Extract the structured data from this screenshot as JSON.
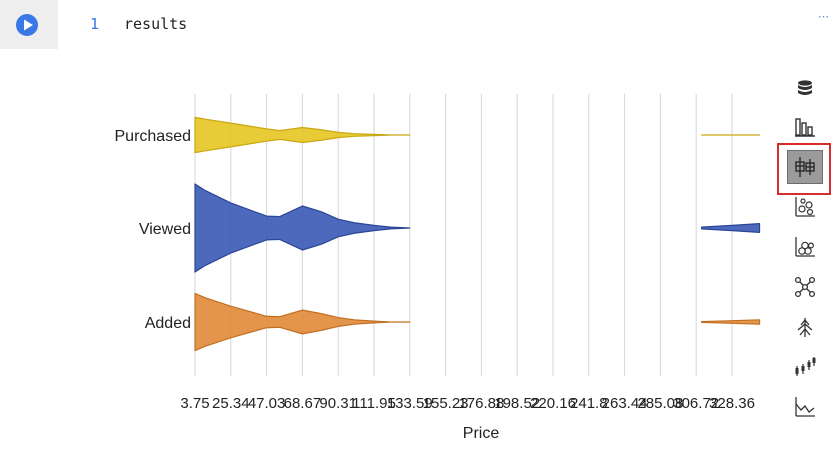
{
  "cell": {
    "line_number": "1",
    "code": "results",
    "more_label": "⋯"
  },
  "toolbar": {
    "items": [
      {
        "icon": "database-icon"
      },
      {
        "icon": "bar-chart-icon"
      },
      {
        "icon": "box-plot-icon",
        "selected": true
      },
      {
        "icon": "scatter-plot-icon"
      },
      {
        "icon": "bubble-chart-icon"
      },
      {
        "icon": "network-graph-icon"
      },
      {
        "icon": "tree-icon"
      },
      {
        "icon": "candlestick-icon"
      },
      {
        "icon": "area-chart-icon"
      }
    ]
  },
  "colors": {
    "accent": "#3b78e7",
    "purchased": "#e5c520",
    "viewed": "#3a59b5",
    "added": "#e08a38",
    "grid": "#d6d6d6",
    "highlight": "#d62c2c"
  },
  "chart_data": {
    "type": "violin",
    "orientation": "horizontal",
    "categories": [
      "Purchased",
      "Viewed",
      "Added"
    ],
    "xlabel": "Price",
    "x_ticks": [
      "3.75",
      "25.34",
      "47.03",
      "68.67",
      "90.31",
      "111.95",
      "133.59",
      "155.23",
      "176.88",
      "198.52",
      "220.16",
      "241.8",
      "263.44",
      "285.08",
      "306.72",
      "328.36"
    ],
    "xlim": [
      3.75,
      350
    ],
    "grid": true,
    "series": [
      {
        "name": "Purchased",
        "x": [
          3.75,
          10,
          25.34,
          47.03,
          55,
          68.67,
          80,
          90.31,
          100,
          111.95,
          122,
          133.59,
          150,
          310,
          328.36,
          345
        ],
        "half_width": [
          0.4,
          0.36,
          0.27,
          0.14,
          0.1,
          0.17,
          0.12,
          0.06,
          0.03,
          0.015,
          0,
          0,
          null,
          0,
          0,
          0
        ]
      },
      {
        "name": "Viewed",
        "x": [
          3.75,
          10,
          25.34,
          47.03,
          55,
          68.67,
          80,
          90.31,
          100,
          111.95,
          122,
          133.59,
          150,
          310,
          328.36,
          345
        ],
        "half_width": [
          1.0,
          0.85,
          0.57,
          0.27,
          0.26,
          0.5,
          0.37,
          0.2,
          0.12,
          0.06,
          0.02,
          0,
          null,
          0.02,
          0.06,
          0.1
        ]
      },
      {
        "name": "Added",
        "x": [
          3.75,
          10,
          25.34,
          47.03,
          55,
          68.67,
          80,
          90.31,
          100,
          111.95,
          122,
          133.59,
          150,
          310,
          328.36,
          345
        ],
        "half_width": [
          0.65,
          0.55,
          0.36,
          0.13,
          0.12,
          0.27,
          0.19,
          0.1,
          0.05,
          0.02,
          0,
          0,
          null,
          0.01,
          0.03,
          0.05
        ]
      }
    ]
  }
}
